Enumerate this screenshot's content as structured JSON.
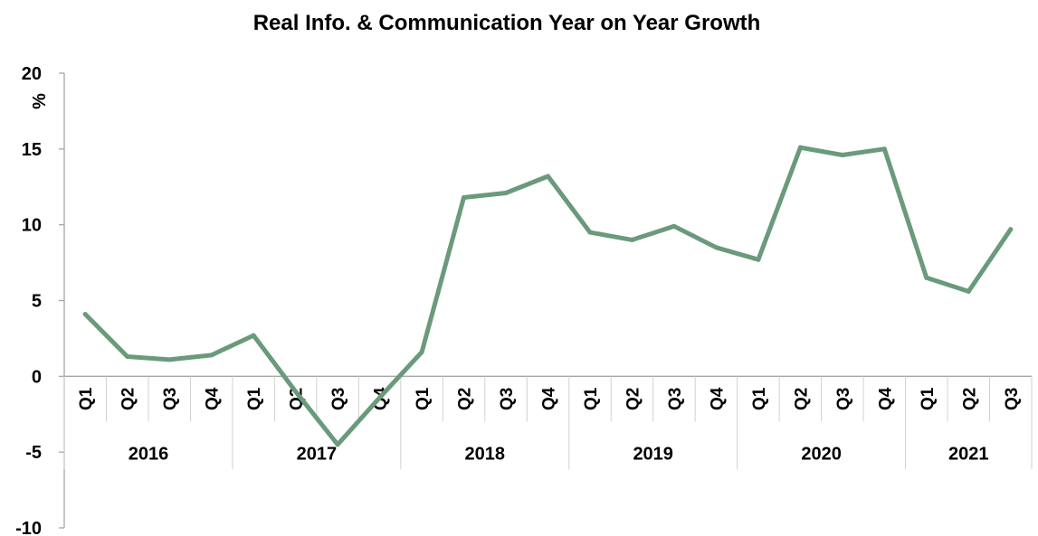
{
  "chart_data": {
    "type": "line",
    "title": "Real Info. & Communication Year on Year Growth",
    "ylabel": "%",
    "xlabel": "",
    "ylim": [
      -10,
      20
    ],
    "yticks": [
      -10,
      -5,
      0,
      5,
      10,
      15,
      20
    ],
    "years": [
      "2016",
      "2017",
      "2018",
      "2019",
      "2020",
      "2021"
    ],
    "categories": [
      "Q1",
      "Q2",
      "Q3",
      "Q4",
      "Q1",
      "Q2",
      "Q3",
      "Q4",
      "Q1",
      "Q2",
      "Q3",
      "Q4",
      "Q1",
      "Q2",
      "Q3",
      "Q4",
      "Q1",
      "Q2",
      "Q3",
      "Q4",
      "Q1",
      "Q2",
      "Q3"
    ],
    "year_of_category": [
      "2016",
      "2016",
      "2016",
      "2016",
      "2017",
      "2017",
      "2017",
      "2017",
      "2018",
      "2018",
      "2018",
      "2018",
      "2019",
      "2019",
      "2019",
      "2019",
      "2020",
      "2020",
      "2020",
      "2020",
      "2021",
      "2021",
      "2021"
    ],
    "series": [
      {
        "values": [
          4.1,
          1.3,
          1.1,
          1.4,
          2.7,
          -1.0,
          -4.5,
          -1.4,
          1.6,
          11.8,
          12.1,
          13.2,
          9.5,
          9.0,
          9.9,
          8.5,
          7.7,
          15.1,
          14.6,
          15.0,
          6.5,
          5.6,
          9.7
        ],
        "color": "#6a9a7c"
      }
    ],
    "grid": false,
    "legend": "none"
  }
}
